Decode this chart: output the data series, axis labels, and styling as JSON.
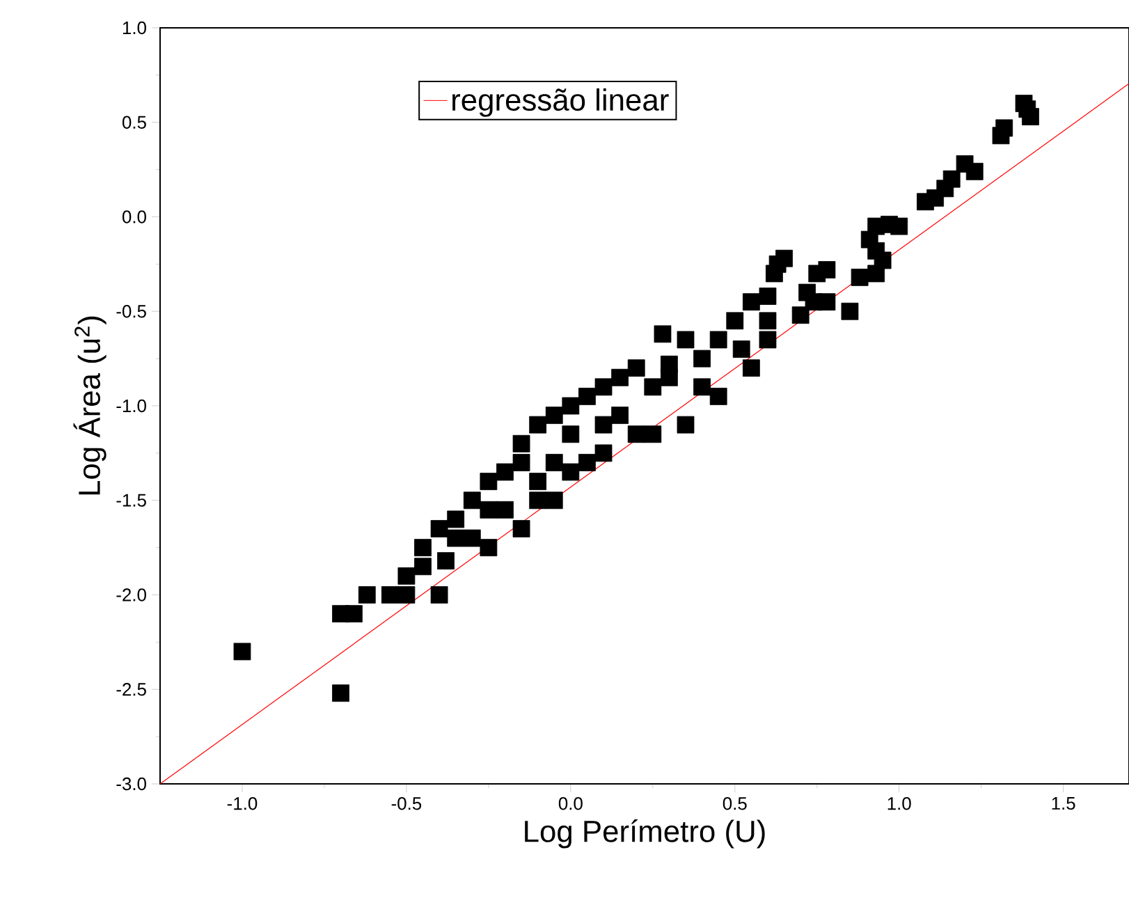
{
  "chart_data": {
    "type": "scatter",
    "xlabel": "Log Perímetro (U)",
    "ylabel": "Log Área (u$^{2}$)",
    "xlim": [
      -1.25,
      1.7
    ],
    "ylim": [
      -3.0,
      1.0
    ],
    "xticks": [
      {
        "value": -1.0,
        "label": "-1.0"
      },
      {
        "value": -0.5,
        "label": "-0.5"
      },
      {
        "value": 0.0,
        "label": "0.0"
      },
      {
        "value": 0.5,
        "label": "0.5"
      },
      {
        "value": 1.0,
        "label": "1.0"
      },
      {
        "value": 1.5,
        "label": "1.5"
      }
    ],
    "yticks": [
      {
        "value": -3.0,
        "label": "-3.0"
      },
      {
        "value": -2.5,
        "label": "-2.5"
      },
      {
        "value": -2.0,
        "label": "-2.0"
      },
      {
        "value": -1.5,
        "label": "-1.5"
      },
      {
        "value": -1.0,
        "label": "-1.0"
      },
      {
        "value": -0.5,
        "label": "-0.5"
      },
      {
        "value": 0.0,
        "label": "0.0"
      },
      {
        "value": 0.5,
        "label": "0.5"
      },
      {
        "value": 1.0,
        "label": "1.0"
      }
    ],
    "legend": "top",
    "grid": false,
    "series": [
      {
        "color": "#000000",
        "marker": "square",
        "x": [
          -1.0,
          -0.7,
          -0.7,
          -0.66,
          -0.62,
          -0.55,
          -0.5,
          -0.5,
          -0.45,
          -0.4,
          1.38,
          1.4,
          1.39,
          1.32,
          1.31,
          1.2,
          1.23,
          1.16,
          1.14,
          1.08,
          1.11,
          0.97,
          1.0,
          0.93,
          0.91,
          0.93,
          0.95,
          0.88,
          0.93,
          0.65,
          0.63,
          0.62,
          0.75,
          0.78,
          0.72,
          0.74,
          0.7,
          0.6,
          0.55,
          0.5,
          0.52,
          0.6,
          0.45,
          0.35,
          0.28,
          0.3,
          0.3,
          0.4,
          0.35,
          0.25,
          0.2,
          0.15,
          0.1,
          0.05,
          0.0,
          0.1,
          0.2,
          0.25,
          0.0,
          -0.05,
          -0.1,
          -0.15,
          -0.05,
          0.0,
          0.05,
          0.1,
          -0.1,
          -0.15,
          -0.2,
          -0.25,
          -0.05,
          -0.2,
          -0.25,
          -0.3,
          -0.3,
          -0.35,
          -0.35,
          -0.4,
          -0.15,
          -0.45,
          -0.38,
          -0.25,
          -0.1,
          0.4,
          0.45,
          0.55,
          0.15,
          0.6,
          0.78,
          0.85
        ],
        "values": [
          -2.3,
          -2.52,
          -2.1,
          -2.1,
          -2.0,
          -2.0,
          -2.0,
          -1.9,
          -1.75,
          -2.0,
          0.6,
          0.53,
          0.57,
          0.47,
          0.43,
          0.28,
          0.24,
          0.2,
          0.15,
          0.08,
          0.1,
          -0.04,
          -0.05,
          -0.05,
          -0.12,
          -0.18,
          -0.23,
          -0.32,
          -0.3,
          -0.22,
          -0.25,
          -0.3,
          -0.3,
          -0.28,
          -0.4,
          -0.45,
          -0.52,
          -0.42,
          -0.45,
          -0.55,
          -0.7,
          -0.65,
          -0.65,
          -0.65,
          -0.62,
          -0.78,
          -0.85,
          -0.9,
          -1.1,
          -0.9,
          -0.8,
          -0.85,
          -0.9,
          -0.95,
          -1.0,
          -1.1,
          -1.15,
          -1.15,
          -1.15,
          -1.05,
          -1.1,
          -1.2,
          -1.3,
          -1.35,
          -1.3,
          -1.25,
          -1.4,
          -1.3,
          -1.35,
          -1.4,
          -1.5,
          -1.55,
          -1.55,
          -1.5,
          -1.7,
          -1.6,
          -1.7,
          -1.65,
          -1.65,
          -1.85,
          -1.82,
          -1.75,
          -1.5,
          -0.75,
          -0.95,
          -0.8,
          -1.05,
          -0.55,
          -0.45,
          -0.5
        ]
      },
      {
        "type": "line",
        "name": "regressão linear",
        "color": "#ff0000",
        "marker": "none",
        "line_style": "solid",
        "x": [
          -1.25,
          1.7
        ],
        "values": [
          -3.0,
          0.705
        ]
      }
    ]
  }
}
